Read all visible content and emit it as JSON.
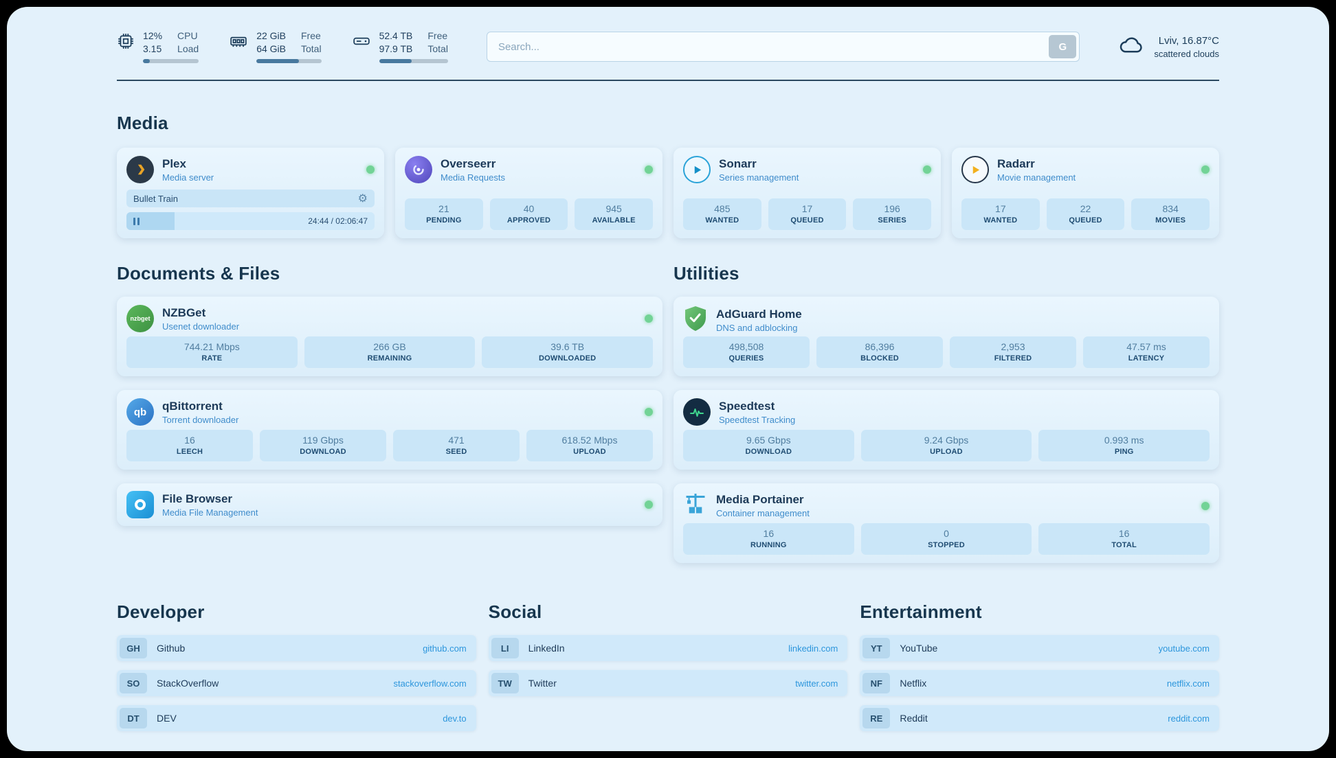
{
  "colors": {
    "accent_link": "#2d96dc",
    "status_online": "#72d396",
    "progress_fill": "#48799f"
  },
  "topbar": {
    "cpu": {
      "values": [
        "12%",
        "3.15"
      ],
      "labels": [
        "CPU",
        "Load"
      ],
      "progress": 12
    },
    "ram": {
      "values": [
        "22 GiB",
        "64 GiB"
      ],
      "labels": [
        "Free",
        "Total"
      ],
      "progress": 66
    },
    "disk": {
      "values": [
        "52.4 TB",
        "97.9 TB"
      ],
      "labels": [
        "Free",
        "Total"
      ],
      "progress": 47
    },
    "search": {
      "placeholder": "Search...",
      "engine_label": "G"
    },
    "weather": {
      "location": "Lviv, 16.87°C",
      "condition": "scattered clouds"
    }
  },
  "media": {
    "heading": "Media",
    "plex": {
      "name": "Plex",
      "subtitle": "Media server",
      "now_playing": "Bullet Train",
      "time": "24:44 / 02:06:47",
      "progress": 19.5
    },
    "overseerr": {
      "name": "Overseerr",
      "subtitle": "Media Requests",
      "stats": [
        {
          "value": "21",
          "label": "PENDING"
        },
        {
          "value": "40",
          "label": "APPROVED"
        },
        {
          "value": "945",
          "label": "AVAILABLE"
        }
      ]
    },
    "sonarr": {
      "name": "Sonarr",
      "subtitle": "Series management",
      "stats": [
        {
          "value": "485",
          "label": "WANTED"
        },
        {
          "value": "17",
          "label": "QUEUED"
        },
        {
          "value": "196",
          "label": "SERIES"
        }
      ]
    },
    "radarr": {
      "name": "Radarr",
      "subtitle": "Movie management",
      "stats": [
        {
          "value": "17",
          "label": "WANTED"
        },
        {
          "value": "22",
          "label": "QUEUED"
        },
        {
          "value": "834",
          "label": "MOVIES"
        }
      ]
    }
  },
  "documents": {
    "heading": "Documents & Files",
    "nzbget": {
      "name": "NZBGet",
      "subtitle": "Usenet downloader",
      "icon_text": "nzbget",
      "stats": [
        {
          "value": "744.21 Mbps",
          "label": "RATE"
        },
        {
          "value": "266 GB",
          "label": "REMAINING"
        },
        {
          "value": "39.6 TB",
          "label": "DOWNLOADED"
        }
      ]
    },
    "qbittorrent": {
      "name": "qBittorrent",
      "subtitle": "Torrent downloader",
      "icon_text": "qb",
      "stats": [
        {
          "value": "16",
          "label": "LEECH"
        },
        {
          "value": "119 Gbps",
          "label": "DOWNLOAD"
        },
        {
          "value": "471",
          "label": "SEED"
        },
        {
          "value": "618.52 Mbps",
          "label": "UPLOAD"
        }
      ]
    },
    "filebrowser": {
      "name": "File Browser",
      "subtitle": "Media File Management"
    }
  },
  "utilities": {
    "heading": "Utilities",
    "adguard": {
      "name": "AdGuard Home",
      "subtitle": "DNS and adblocking",
      "stats": [
        {
          "value": "498,508",
          "label": "QUERIES"
        },
        {
          "value": "86,396",
          "label": "BLOCKED"
        },
        {
          "value": "2,953",
          "label": "FILTERED"
        },
        {
          "value": "47.57 ms",
          "label": "LATENCY"
        }
      ]
    },
    "speedtest": {
      "name": "Speedtest",
      "subtitle": "Speedtest Tracking",
      "stats": [
        {
          "value": "9.65 Gbps",
          "label": "DOWNLOAD"
        },
        {
          "value": "9.24 Gbps",
          "label": "UPLOAD"
        },
        {
          "value": "0.993 ms",
          "label": "PING"
        }
      ]
    },
    "portainer": {
      "name": "Media Portainer",
      "subtitle": "Container management",
      "stats": [
        {
          "value": "16",
          "label": "RUNNING"
        },
        {
          "value": "0",
          "label": "STOPPED"
        },
        {
          "value": "16",
          "label": "TOTAL"
        }
      ]
    }
  },
  "bookmarks": {
    "developer": {
      "heading": "Developer",
      "items": [
        {
          "abbr": "GH",
          "name": "Github",
          "url": "github.com"
        },
        {
          "abbr": "SO",
          "name": "StackOverflow",
          "url": "stackoverflow.com"
        },
        {
          "abbr": "DT",
          "name": "DEV",
          "url": "dev.to"
        }
      ]
    },
    "social": {
      "heading": "Social",
      "items": [
        {
          "abbr": "LI",
          "name": "LinkedIn",
          "url": "linkedin.com"
        },
        {
          "abbr": "TW",
          "name": "Twitter",
          "url": "twitter.com"
        }
      ]
    },
    "entertainment": {
      "heading": "Entertainment",
      "items": [
        {
          "abbr": "YT",
          "name": "YouTube",
          "url": "youtube.com"
        },
        {
          "abbr": "NF",
          "name": "Netflix",
          "url": "netflix.com"
        },
        {
          "abbr": "RE",
          "name": "Reddit",
          "url": "reddit.com"
        }
      ]
    }
  }
}
